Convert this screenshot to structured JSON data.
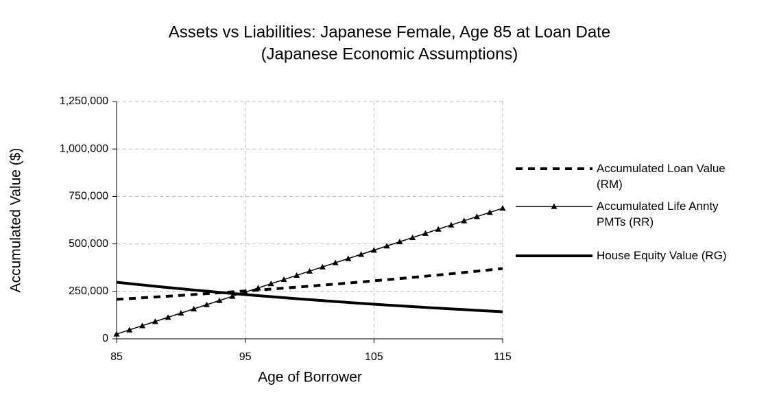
{
  "chart_data": {
    "type": "line",
    "title": [
      "Assets vs Liabilities: Japanese Female, Age 85 at Loan Date",
      "(Japanese Economic Assumptions)"
    ],
    "x_label": "Age of Borrower",
    "y_label": "Accumulated Value ($)",
    "x": [
      85,
      86,
      87,
      88,
      89,
      90,
      91,
      92,
      93,
      94,
      95,
      96,
      97,
      98,
      99,
      100,
      101,
      102,
      103,
      104,
      105,
      106,
      107,
      108,
      109,
      110,
      111,
      112,
      113,
      114,
      115
    ],
    "series": [
      {
        "name": "Accumulated Loan Value (RM)",
        "color": "#000000",
        "style": "dashed",
        "values": [
          208000,
          212000,
          216200,
          220400,
          224600,
          229000,
          233400,
          237900,
          242600,
          247300,
          252100,
          257000,
          262000,
          267000,
          272200,
          277500,
          282900,
          288400,
          294000,
          299700,
          305500,
          311400,
          317500,
          323600,
          329900,
          336300,
          342800,
          349500,
          356300,
          363200,
          370200
        ]
      },
      {
        "name": "Accumulated Life Annty PMTs (RR)",
        "color": "#000000",
        "style": "triangle",
        "values": [
          25000,
          47100,
          69200,
          91300,
          113400,
          135500,
          157600,
          179700,
          201800,
          223900,
          246000,
          268100,
          290200,
          312300,
          334400,
          356500,
          378600,
          400700,
          422800,
          444900,
          467000,
          489100,
          511200,
          533300,
          555400,
          577500,
          599600,
          621700,
          643800,
          665900,
          688000
        ]
      },
      {
        "name": "House Equity Value (RG)",
        "color": "#000000",
        "style": "thick",
        "values": [
          298000,
          290800,
          283800,
          276900,
          270200,
          263600,
          257200,
          251000,
          244900,
          239000,
          233200,
          227600,
          222100,
          216700,
          211500,
          206300,
          201300,
          196500,
          191700,
          187100,
          182500,
          178100,
          173800,
          169600,
          165500,
          161500,
          157600,
          153800,
          150000,
          146400,
          142900
        ]
      }
    ],
    "xlim": [
      85,
      115
    ],
    "xticks": [
      85,
      95,
      105,
      115
    ],
    "ylim": [
      0,
      1250000
    ],
    "yticks": [
      0,
      {
        "value": 250000,
        "label": "250,000"
      },
      {
        "value": 500000,
        "label": "500,000"
      },
      {
        "value": 750000,
        "label": "750,000"
      },
      {
        "value": 1000000,
        "label": "1,000,000"
      },
      {
        "value": 1250000,
        "label": "1,250,000"
      }
    ],
    "grid": true,
    "legend": "right"
  }
}
